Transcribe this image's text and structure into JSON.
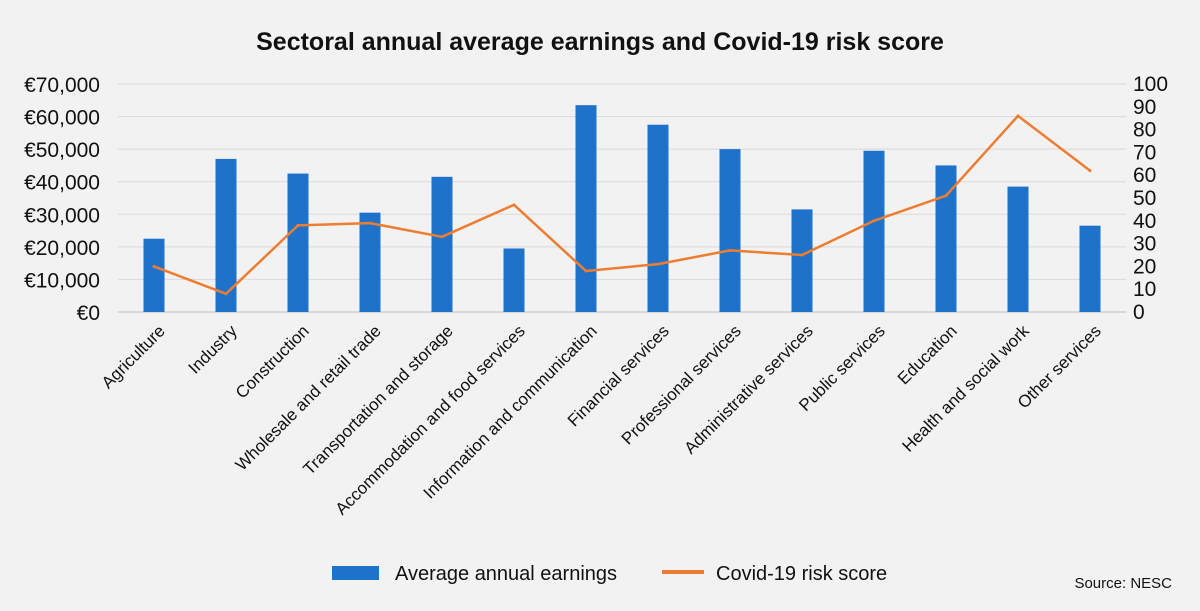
{
  "chart_data": {
    "type": "bar+line",
    "title": "Sectoral annual average earnings and Covid-19 risk score",
    "categories": [
      "Agriculture",
      "Industry",
      "Construction",
      "Wholesale and retail trade",
      "Transportation and storage",
      "Accommodation and food services",
      "Information and communication",
      "Financial services",
      "Professional services",
      "Administrative services",
      "Public services",
      "Education",
      "Health and social work",
      "Other services"
    ],
    "series": [
      {
        "name": "Average annual earnings",
        "type": "bar",
        "axis": "left",
        "color": "#1f72c9",
        "values": [
          22500,
          47000,
          42500,
          30500,
          41500,
          19500,
          63500,
          57500,
          50000,
          31500,
          49500,
          45000,
          38500,
          26500
        ]
      },
      {
        "name": "Covid-19 risk score",
        "type": "line",
        "axis": "right",
        "color": "#ed7d31",
        "values": [
          20,
          8,
          38,
          39,
          33,
          47,
          18,
          21,
          27,
          25,
          40,
          51,
          86,
          62
        ]
      }
    ],
    "y_left": {
      "min": 0,
      "max": 70000,
      "ticks": [
        0,
        10000,
        20000,
        30000,
        40000,
        50000,
        60000,
        70000
      ],
      "tick_labels": [
        "€0",
        "€10,000",
        "€20,000",
        "€30,000",
        "€40,000",
        "€50,000",
        "€60,000",
        "€70,000"
      ]
    },
    "y_right": {
      "min": 0,
      "max": 100,
      "ticks": [
        0,
        10,
        20,
        30,
        40,
        50,
        60,
        70,
        80,
        90,
        100
      ],
      "tick_labels": [
        "0",
        "10",
        "20",
        "30",
        "40",
        "50",
        "60",
        "70",
        "80",
        "90",
        "100"
      ]
    },
    "grid": true,
    "legend_position": "bottom"
  },
  "source": "Source: NESC"
}
